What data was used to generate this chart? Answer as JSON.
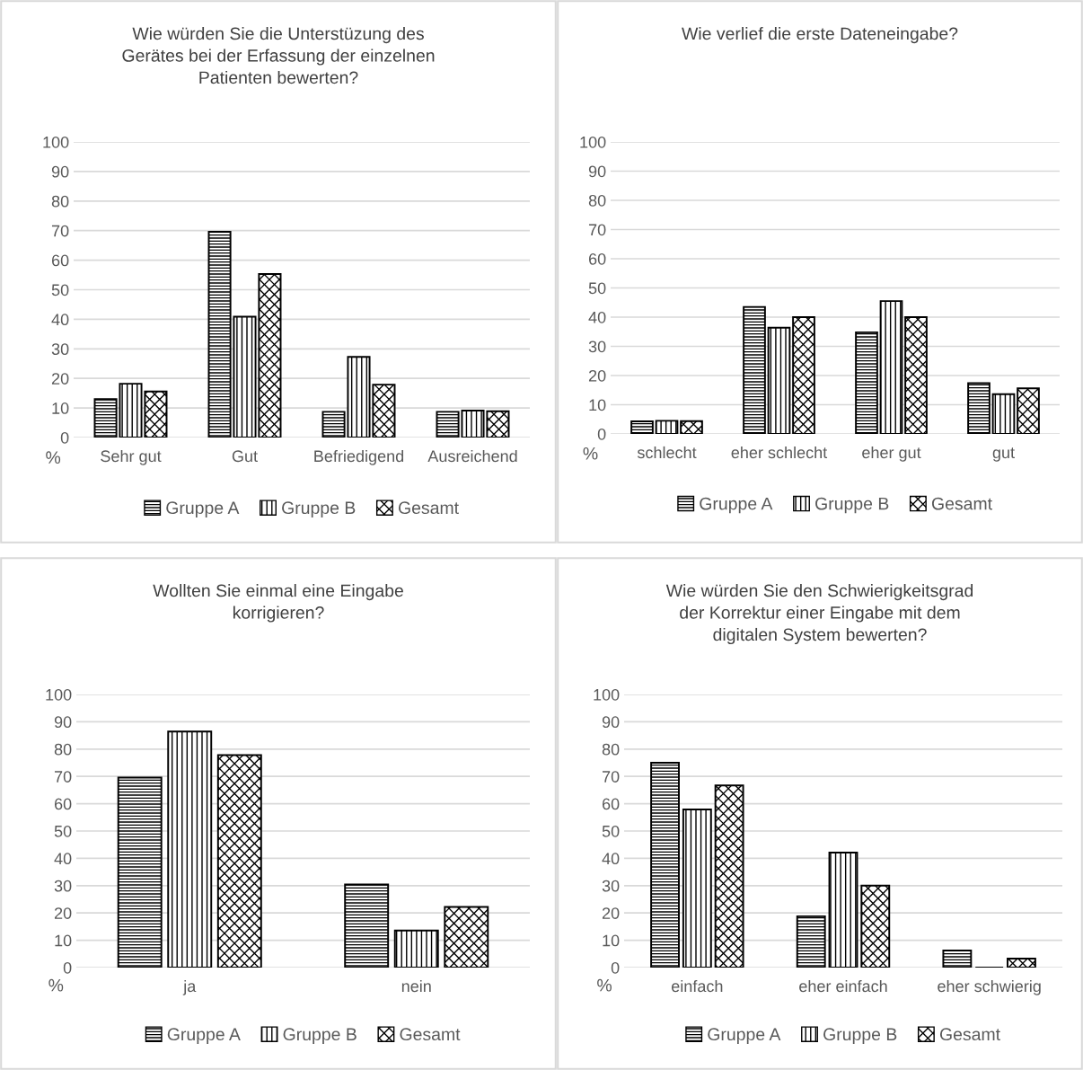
{
  "chart_data": [
    {
      "type": "bar",
      "title": "Wie würden Sie die Unterstüzung des\nGerätes bei der Erfassung der einzelnen\nPatienten bewerten?",
      "ylabel": "%",
      "categories": [
        "Sehr gut",
        "Gut",
        "Befriedigend",
        "Ausreichend"
      ],
      "series": [
        {
          "name": "Gruppe A",
          "color": "#000000",
          "values": [
            13.0,
            69.6,
            8.7,
            8.7
          ]
        },
        {
          "name": "Gruppe B",
          "color": "#000000",
          "values": [
            18.2,
            40.9,
            27.3,
            9.1
          ]
        },
        {
          "name": "Gesamt",
          "color": "#000000",
          "values": [
            15.6,
            55.3,
            17.9,
            8.9
          ]
        }
      ],
      "ylim": [
        0,
        100
      ],
      "yticks": [
        0,
        10,
        20,
        30,
        40,
        50,
        60,
        70,
        80,
        90,
        100
      ],
      "grid": "y",
      "legend": "bottom"
    },
    {
      "type": "bar",
      "title": "Wie verlief die erste Dateneingabe?",
      "ylabel": "%",
      "categories": [
        "schlecht",
        "eher schlecht",
        "eher gut",
        "gut"
      ],
      "series": [
        {
          "name": "Gruppe A",
          "color": "#000000",
          "values": [
            4.3,
            43.5,
            34.8,
            17.4
          ]
        },
        {
          "name": "Gruppe B",
          "color": "#000000",
          "values": [
            4.5,
            36.4,
            45.5,
            13.6
          ]
        },
        {
          "name": "Gesamt",
          "color": "#000000",
          "values": [
            4.4,
            40.0,
            40.0,
            15.6
          ]
        }
      ],
      "ylim": [
        0,
        100
      ],
      "yticks": [
        0,
        10,
        20,
        30,
        40,
        50,
        60,
        70,
        80,
        90,
        100
      ],
      "grid": "y",
      "legend": "bottom"
    },
    {
      "type": "bar",
      "title": "Wollten Sie einmal eine Eingabe\nkorrigieren?",
      "ylabel": "%",
      "categories": [
        "ja",
        "nein"
      ],
      "series": [
        {
          "name": "Gruppe A",
          "color": "#000000",
          "values": [
            69.6,
            30.4
          ]
        },
        {
          "name": "Gruppe B",
          "color": "#000000",
          "values": [
            86.4,
            13.6
          ]
        },
        {
          "name": "Gesamt",
          "color": "#000000",
          "values": [
            77.8,
            22.2
          ]
        }
      ],
      "ylim": [
        0,
        100
      ],
      "yticks": [
        0,
        10,
        20,
        30,
        40,
        50,
        60,
        70,
        80,
        90,
        100
      ],
      "grid": "y",
      "legend": "bottom"
    },
    {
      "type": "bar",
      "title": "Wie würden Sie den Schwierigkeitsgrad\nder Korrektur einer Eingabe mit dem\ndigitalen System bewerten?",
      "ylabel": "%",
      "categories": [
        "einfach",
        "eher einfach",
        "eher schwierig"
      ],
      "series": [
        {
          "name": "Gruppe A",
          "color": "#000000",
          "values": [
            75.0,
            18.8,
            6.3
          ]
        },
        {
          "name": "Gruppe B",
          "color": "#000000",
          "values": [
            57.9,
            42.1,
            0
          ]
        },
        {
          "name": "Gesamt",
          "color": "#000000",
          "values": [
            66.7,
            30.0,
            3.3
          ]
        }
      ],
      "ylim": [
        0,
        100
      ],
      "yticks": [
        0,
        10,
        20,
        30,
        40,
        50,
        60,
        70,
        80,
        90,
        100
      ],
      "grid": "y",
      "legend": "bottom"
    }
  ]
}
